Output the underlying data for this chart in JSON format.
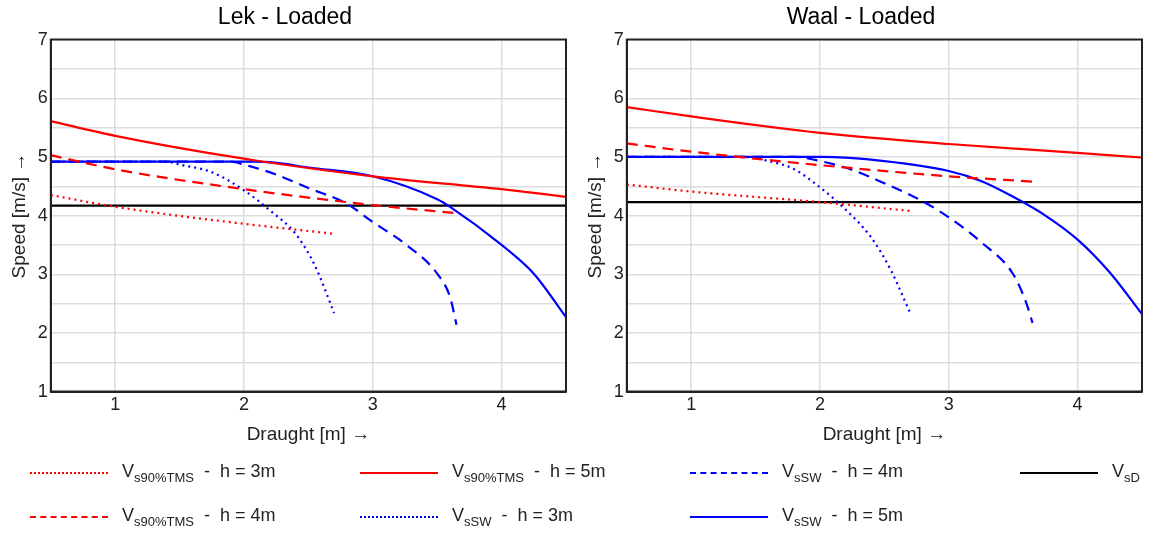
{
  "chart_data": [
    {
      "type": "line",
      "title": "Lek - Loaded",
      "xlabel": "Draught [m] →",
      "ylabel": "Speed [m/s] →",
      "xlim": [
        0.5,
        4.5
      ],
      "xticks": [
        1,
        2,
        3,
        4
      ],
      "ylim": [
        1,
        7
      ],
      "yticks": [
        1,
        {
          "value": 1.5,
          "label": null
        },
        2,
        {
          "value": 2.5,
          "label": null
        },
        3,
        {
          "value": 3.5,
          "label": null
        },
        4,
        {
          "value": 4.5,
          "label": null
        },
        5,
        {
          "value": 5.5,
          "label": null
        },
        6,
        {
          "value": 6.5,
          "label": null
        },
        7
      ],
      "grid": true,
      "legend": "bottom",
      "series": [
        {
          "name": "V$_{s90%TMS}$  -  h = 3m",
          "color": "#ff0000",
          "line_style": "dotted",
          "x": [
            0.5,
            1,
            2,
            2.7
          ],
          "values": [
            4.35,
            4.15,
            3.86,
            3.69
          ]
        },
        {
          "name": "V$_{s90%TMS}$  -  h = 4m",
          "color": "#ff0000",
          "line_style": "dashed",
          "x": [
            0.5,
            1,
            2,
            3,
            3.65
          ],
          "values": [
            5.03,
            4.79,
            4.45,
            4.18,
            4.04
          ]
        },
        {
          "name": "V$_{s90%TMS}$  -  h = 5m",
          "color": "#ff0000",
          "line_style": "solid",
          "x": [
            0.5,
            1,
            2,
            3,
            4,
            4.5
          ],
          "values": [
            5.61,
            5.36,
            4.97,
            4.67,
            4.45,
            4.32
          ]
        },
        {
          "name": "V$_{sSW}$  -  h = 3m",
          "color": "#0000ff",
          "line_style": "dotted",
          "x": [
            0.5,
            1,
            1.4,
            1.5,
            1.75,
            2,
            2.2,
            2.4,
            2.55,
            2.7
          ],
          "values": [
            4.92,
            4.92,
            4.92,
            4.87,
            4.74,
            4.43,
            4.09,
            3.69,
            3.15,
            2.34
          ]
        },
        {
          "name": "V$_{sSW}$  -  h = 4m",
          "color": "#0000ff",
          "line_style": "dashed",
          "x": [
            0.5,
            1,
            1.9,
            2,
            2.25,
            2.5,
            2.8,
            3,
            3.25,
            3.5,
            3.6,
            3.65
          ],
          "values": [
            4.92,
            4.92,
            4.92,
            4.87,
            4.7,
            4.47,
            4.2,
            3.89,
            3.52,
            3.01,
            2.61,
            2.14
          ]
        },
        {
          "name": "V$_{sSW}$  -  h = 5m",
          "color": "#0000ff",
          "line_style": "solid",
          "x": [
            0.5,
            1,
            2,
            2.2,
            2.5,
            3,
            3.5,
            3.6,
            4,
            4.25,
            4.5
          ],
          "values": [
            4.92,
            4.92,
            4.92,
            4.91,
            4.82,
            4.67,
            4.28,
            4.15,
            3.5,
            3.01,
            2.27
          ]
        },
        {
          "name": "V$_{sD}$",
          "color": "#000000",
          "line_style": "solid",
          "x": [
            0.5,
            4.5
          ],
          "values": [
            4.17,
            4.17
          ]
        }
      ]
    },
    {
      "type": "line",
      "title": "Waal - Loaded",
      "xlabel": "Draught [m] →",
      "ylabel": "Speed [m/s] →",
      "xlim": [
        0.5,
        4.5
      ],
      "xticks": [
        1,
        2,
        3,
        4
      ],
      "ylim": [
        1,
        7
      ],
      "yticks": [
        1,
        {
          "value": 1.5,
          "label": null
        },
        2,
        {
          "value": 2.5,
          "label": null
        },
        3,
        {
          "value": 3.5,
          "label": null
        },
        4,
        {
          "value": 4.5,
          "label": null
        },
        5,
        {
          "value": 5.5,
          "label": null
        },
        6,
        {
          "value": 6.5,
          "label": null
        },
        7
      ],
      "grid": true,
      "series": [
        {
          "color": "#ff0000",
          "line_style": "dotted",
          "x": [
            0.5,
            1,
            2,
            2.7
          ],
          "values": [
            4.53,
            4.41,
            4.23,
            4.08
          ]
        },
        {
          "color": "#ff0000",
          "line_style": "dashed",
          "x": [
            0.5,
            1,
            2,
            3,
            3.65
          ],
          "values": [
            5.23,
            5.09,
            4.86,
            4.67,
            4.58
          ]
        },
        {
          "color": "#ff0000",
          "line_style": "solid",
          "x": [
            0.5,
            1,
            2,
            3,
            4,
            4.5
          ],
          "values": [
            5.85,
            5.69,
            5.41,
            5.22,
            5.07,
            4.99
          ]
        },
        {
          "color": "#0000ff",
          "line_style": "dotted",
          "x": [
            0.5,
            1,
            1.4,
            1.6,
            1.8,
            2,
            2.2,
            2.4,
            2.55,
            2.7
          ],
          "values": [
            5.0,
            5.0,
            5.0,
            4.93,
            4.79,
            4.48,
            4.1,
            3.62,
            3.07,
            2.34
          ]
        },
        {
          "color": "#0000ff",
          "line_style": "dashed",
          "x": [
            0.5,
            1,
            1.8,
            2,
            2.25,
            2.5,
            2.8,
            3,
            3.25,
            3.5,
            3.6,
            3.65
          ],
          "values": [
            5.0,
            5.0,
            5.0,
            4.93,
            4.78,
            4.55,
            4.24,
            3.97,
            3.55,
            3.0,
            2.52,
            2.17
          ]
        },
        {
          "color": "#0000ff",
          "line_style": "solid",
          "x": [
            0.5,
            1,
            2,
            2.5,
            3,
            3.25,
            3.5,
            3.75,
            4,
            4.25,
            4.5
          ],
          "values": [
            5.0,
            5.0,
            5.0,
            4.93,
            4.76,
            4.59,
            4.32,
            4.0,
            3.59,
            3.03,
            2.32
          ]
        },
        {
          "color": "#000000",
          "line_style": "solid",
          "x": [
            0.5,
            4.5
          ],
          "values": [
            4.23,
            4.23
          ]
        }
      ]
    }
  ]
}
